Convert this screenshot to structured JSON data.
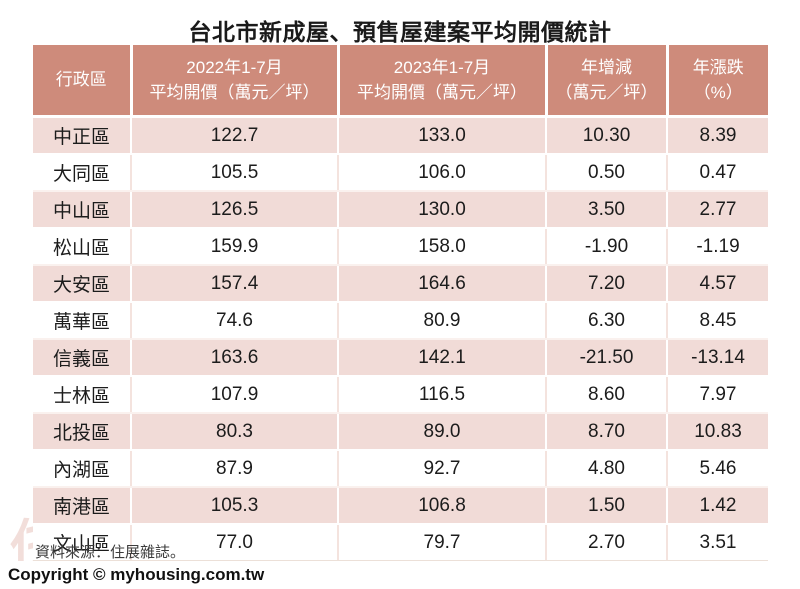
{
  "page": {
    "title": "台北市新成屋、預售屋建案平均開價統計",
    "source_note": "資料來源：住展雜誌。",
    "copyright": "Copyright © myhousing.com.tw",
    "watermark": "住展"
  },
  "colors": {
    "header_bg": "#ce8b7b",
    "header_text": "#ffffff",
    "row_alt_bg": "#f1dbd7",
    "row_bg": "#ffffff",
    "body_text": "#1c1c1c"
  },
  "chart_data": {
    "type": "table",
    "title": "台北市新成屋、預售屋建案平均開價統計",
    "columns": [
      "行政區",
      "2022年1-7月\n平均開價（萬元／坪）",
      "2023年1-7月\n平均開價（萬元／坪）",
      "年增減\n（萬元／坪）",
      "年漲跌\n（%）"
    ],
    "column_keys": [
      "district",
      "avg_price_2022_jan_jul",
      "avg_price_2023_jan_jul",
      "yoy_change",
      "yoy_change_pct"
    ],
    "rows": [
      [
        "中正區",
        "122.7",
        "133.0",
        "10.30",
        "8.39"
      ],
      [
        "大同區",
        "105.5",
        "106.0",
        "0.50",
        "0.47"
      ],
      [
        "中山區",
        "126.5",
        "130.0",
        "3.50",
        "2.77"
      ],
      [
        "松山區",
        "159.9",
        "158.0",
        "-1.90",
        "-1.19"
      ],
      [
        "大安區",
        "157.4",
        "164.6",
        "7.20",
        "4.57"
      ],
      [
        "萬華區",
        "74.6",
        "80.9",
        "6.30",
        "8.45"
      ],
      [
        "信義區",
        "163.6",
        "142.1",
        "-21.50",
        "-13.14"
      ],
      [
        "士林區",
        "107.9",
        "116.5",
        "8.60",
        "7.97"
      ],
      [
        "北投區",
        "80.3",
        "89.0",
        "8.70",
        "10.83"
      ],
      [
        "內湖區",
        "87.9",
        "92.7",
        "4.80",
        "5.46"
      ],
      [
        "南港區",
        "105.3",
        "106.8",
        "1.50",
        "1.42"
      ],
      [
        "文山區",
        "77.0",
        "79.7",
        "2.70",
        "3.51"
      ]
    ]
  }
}
